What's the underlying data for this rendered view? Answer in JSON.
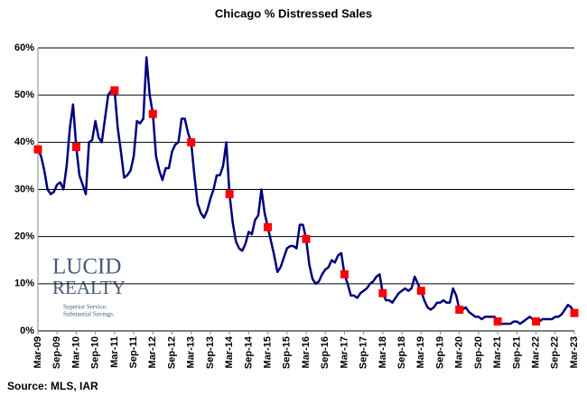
{
  "chart_data": {
    "type": "line",
    "title": "Chicago % Distressed Sales",
    "source": "Source: MLS, IAR",
    "logo": {
      "line1": "LUCID",
      "line2": "REALTY",
      "tagline1": "Superior Service.",
      "tagline2": "Substantial Savings."
    },
    "categories": [
      "Mar-09",
      null,
      null,
      null,
      null,
      null,
      "Sep-09",
      null,
      null,
      null,
      null,
      null,
      "Mar-10",
      null,
      null,
      null,
      null,
      null,
      "Sep-10",
      null,
      null,
      null,
      null,
      null,
      "Mar-11",
      null,
      null,
      null,
      null,
      null,
      "Sep-11",
      null,
      null,
      null,
      null,
      null,
      "Mar-12",
      null,
      null,
      null,
      null,
      null,
      "Sep-12",
      null,
      null,
      null,
      null,
      null,
      "Mar-13",
      null,
      null,
      null,
      null,
      null,
      "Sep-13",
      null,
      null,
      null,
      null,
      null,
      "Mar-14",
      null,
      null,
      null,
      null,
      null,
      "Sep-14",
      null,
      null,
      null,
      null,
      null,
      "Mar-15",
      null,
      null,
      null,
      null,
      null,
      "Sep-15",
      null,
      null,
      null,
      null,
      null,
      "Mar-16",
      null,
      null,
      null,
      null,
      null,
      "Sep-16",
      null,
      null,
      null,
      null,
      null,
      "Mar-17",
      null,
      null,
      null,
      null,
      null,
      "Sep-17",
      null,
      null,
      null,
      null,
      null,
      "Mar-18",
      null,
      null,
      null,
      null,
      null,
      "Sep-18",
      null,
      null,
      null,
      null,
      null,
      "Mar-19",
      null,
      null,
      null,
      null,
      null,
      "Sep-19",
      null,
      null,
      null,
      null,
      null,
      "Mar-20",
      null,
      null,
      null,
      null,
      null,
      "Sep-20",
      null,
      null,
      null,
      null,
      null,
      "Mar-21",
      null,
      null,
      null,
      null,
      null,
      "Sep-21",
      null,
      null,
      null,
      null,
      null,
      "Mar-22",
      null,
      null,
      null,
      null,
      null,
      "Sep-22",
      null,
      null,
      null,
      null,
      null,
      "Mar-23"
    ],
    "series": [
      {
        "color": "#000080",
        "values": [
          38.5,
          37,
          34,
          30,
          29,
          29.5,
          31,
          31.5,
          30,
          35,
          43,
          48,
          39,
          33,
          31,
          29,
          40,
          40.5,
          44.5,
          41,
          40,
          45,
          50,
          51,
          51,
          43,
          38,
          32.5,
          33,
          34,
          37,
          44.5,
          44,
          45,
          58,
          50,
          46,
          37,
          34,
          32,
          34.5,
          34.5,
          38,
          39.5,
          40,
          45,
          45,
          42,
          40,
          33,
          27,
          25,
          24,
          25.5,
          28,
          30,
          33,
          33,
          35,
          40,
          29,
          23,
          19,
          17.5,
          17,
          18.5,
          21,
          20.5,
          23.5,
          24.5,
          30,
          25,
          22,
          19,
          16,
          12.5,
          13.5,
          15.5,
          17.5,
          18,
          18,
          17.5,
          22.5,
          22.5,
          19.5,
          14,
          11,
          10,
          10.5,
          12,
          13,
          13.5,
          15,
          14.5,
          16,
          16.5,
          12,
          10,
          7.5,
          7.5,
          7,
          8,
          8.5,
          9,
          10,
          10.5,
          11.5,
          12,
          8,
          6.5,
          6.5,
          6,
          7,
          8,
          8.5,
          9,
          8.5,
          9,
          11.5,
          10,
          8.5,
          6.5,
          5,
          4.5,
          5,
          6,
          6,
          6.5,
          6,
          6,
          9,
          7.5,
          4.5,
          4.5,
          5,
          4,
          3.5,
          3,
          3,
          2.5,
          3,
          3,
          3,
          3,
          2,
          1.5,
          1.5,
          1.5,
          1.5,
          2,
          2,
          1.5,
          2,
          2.5,
          3,
          2.5,
          2,
          2,
          2.5,
          2.5,
          2.5,
          2.5,
          3,
          3,
          3.5,
          4.5,
          5.5,
          5,
          3.8
        ]
      },
      {
        "color": "#ff0000",
        "marker": "square",
        "values": [
          38.5,
          null,
          null,
          null,
          null,
          null,
          null,
          null,
          null,
          null,
          null,
          null,
          39,
          null,
          null,
          null,
          null,
          null,
          null,
          null,
          null,
          null,
          null,
          null,
          51,
          null,
          null,
          null,
          null,
          null,
          null,
          null,
          null,
          null,
          null,
          null,
          46,
          null,
          null,
          null,
          null,
          null,
          null,
          null,
          null,
          null,
          null,
          null,
          40,
          null,
          null,
          null,
          null,
          null,
          null,
          null,
          null,
          null,
          null,
          null,
          29,
          null,
          null,
          null,
          null,
          null,
          null,
          null,
          null,
          null,
          null,
          null,
          22,
          null,
          null,
          null,
          null,
          null,
          null,
          null,
          null,
          null,
          null,
          null,
          19.5,
          null,
          null,
          null,
          null,
          null,
          null,
          null,
          null,
          null,
          null,
          null,
          12,
          null,
          null,
          null,
          null,
          null,
          null,
          null,
          null,
          null,
          null,
          null,
          8,
          null,
          null,
          null,
          null,
          null,
          null,
          null,
          null,
          null,
          null,
          null,
          8.5,
          null,
          null,
          null,
          null,
          null,
          null,
          null,
          null,
          null,
          null,
          null,
          4.5,
          null,
          null,
          null,
          null,
          null,
          null,
          null,
          null,
          null,
          null,
          null,
          2,
          null,
          null,
          null,
          null,
          null,
          null,
          null,
          null,
          null,
          null,
          null,
          2,
          null,
          null,
          null,
          null,
          null,
          null,
          null,
          null,
          null,
          null,
          null,
          3.8
        ]
      }
    ],
    "ylim": [
      0,
      60
    ],
    "yticks": [
      {
        "value": 0,
        "label": "0%"
      },
      {
        "value": 10,
        "label": "10%"
      },
      {
        "value": 20,
        "label": "20%"
      },
      {
        "value": 30,
        "label": "30%"
      },
      {
        "value": 40,
        "label": "40%"
      },
      {
        "value": 50,
        "label": "50%"
      },
      {
        "value": 60,
        "label": "60%"
      }
    ],
    "grid": true
  }
}
